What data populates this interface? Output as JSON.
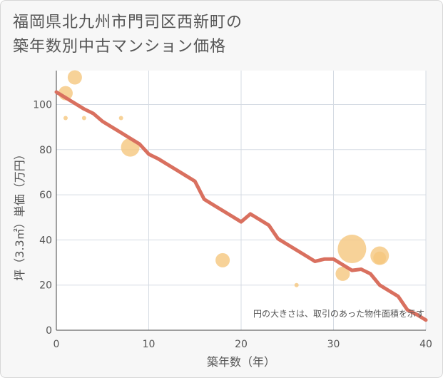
{
  "title_lines": [
    "福岡県北九州市門司区西新町の",
    "築年数別中古マンション価格"
  ],
  "colors": {
    "bubble": "#f5c77e",
    "line": "#d9705f",
    "grid": "#d5dbe3",
    "plot_bg": "#ffffff",
    "page_bg": "#f7f7f7"
  },
  "chart_data": {
    "type": "scatter",
    "xlabel": "築年数（年）",
    "ylabel": "坪（3.3㎡）単価（万円）",
    "xlim": [
      0,
      40
    ],
    "ylim": [
      0,
      115
    ],
    "xticks": [
      0,
      10,
      20,
      30,
      40
    ],
    "yticks": [
      0,
      20,
      40,
      60,
      80,
      100
    ],
    "note": "円の大きさは、取引のあった物件面積を示す",
    "bubbles": [
      {
        "x": 1,
        "y": 105,
        "size": 10
      },
      {
        "x": 2,
        "y": 112,
        "size": 10
      },
      {
        "x": 1,
        "y": 94,
        "size": 3
      },
      {
        "x": 3,
        "y": 94,
        "size": 3
      },
      {
        "x": 7,
        "y": 94,
        "size": 3
      },
      {
        "x": 8,
        "y": 81,
        "size": 13
      },
      {
        "x": 18,
        "y": 31,
        "size": 10
      },
      {
        "x": 26,
        "y": 20,
        "size": 3
      },
      {
        "x": 31,
        "y": 25,
        "size": 10
      },
      {
        "x": 32,
        "y": 36,
        "size": 20
      },
      {
        "x": 35,
        "y": 33,
        "size": 13
      },
      {
        "x": 35,
        "y": 32,
        "size": 9
      }
    ],
    "trend": {
      "x": [
        0,
        1,
        2,
        3,
        4,
        5,
        6,
        7,
        8,
        9,
        10,
        11,
        12,
        13,
        14,
        15,
        16,
        17,
        18,
        19,
        20,
        21,
        22,
        23,
        24,
        25,
        26,
        27,
        28,
        29,
        30,
        31,
        32,
        33,
        34,
        35,
        36,
        37,
        38,
        39,
        40
      ],
      "y": [
        105.5,
        103,
        100.5,
        98,
        96,
        92.5,
        90,
        87.5,
        85,
        82.5,
        78,
        76,
        73.5,
        71,
        68.5,
        66,
        58,
        55.5,
        53,
        50.5,
        48,
        51.5,
        49,
        46.5,
        40.5,
        38,
        35.5,
        33,
        30.5,
        31.5,
        31.5,
        29,
        26.5,
        27,
        25,
        20,
        17.5,
        15,
        9,
        7,
        4.5
      ]
    }
  }
}
